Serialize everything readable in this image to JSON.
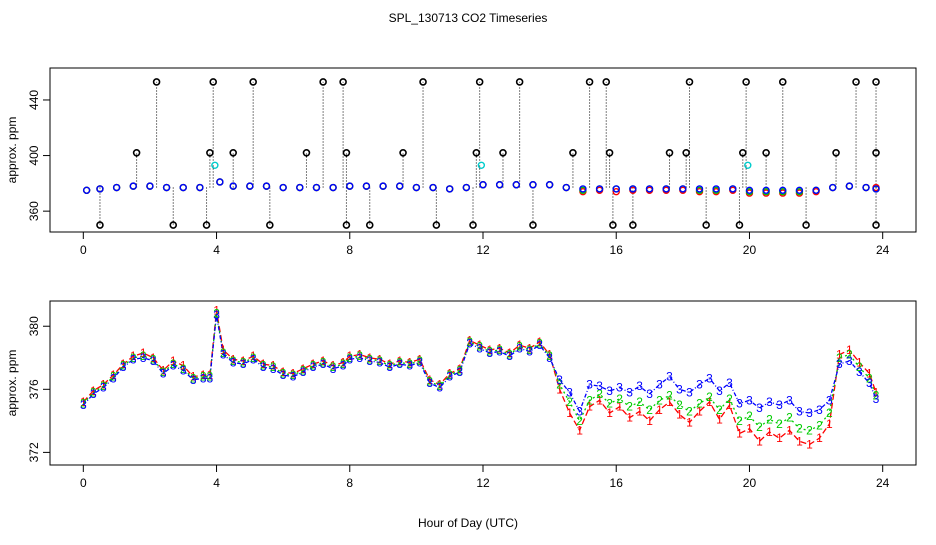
{
  "title": "SPL_130713  CO2 Timeseries",
  "xlabel": "Hour of Day (UTC)",
  "colors": {
    "series1": "#ff0000",
    "series2": "#00cc00",
    "series3": "#0000ff",
    "flag": "#000000",
    "cyan": "#00cccc"
  },
  "chart_data": [
    {
      "type": "scatter",
      "panel": "top",
      "ylabel": "approx. ppm",
      "x_ticks": [
        0,
        4,
        8,
        12,
        16,
        20,
        24
      ],
      "y_ticks": [
        360,
        400,
        440
      ],
      "xlim": [
        -1,
        25
      ],
      "ylim": [
        345,
        463
      ],
      "series": [
        {
          "name": "1",
          "x": [
            0.1,
            0.5,
            1,
            1.5,
            2,
            2.5,
            3,
            3.5,
            4.1,
            4.5,
            5,
            5.5,
            6,
            6.5,
            7,
            7.5,
            8,
            8.5,
            9,
            9.5,
            10,
            10.5,
            11,
            11.5,
            12,
            12.5,
            13,
            13.5,
            14,
            14.5,
            15,
            15.5,
            16,
            16.5,
            17,
            17.5,
            18,
            18.5,
            19,
            19.5,
            20,
            20.5,
            21,
            21.5,
            22,
            22.5,
            23,
            23.5,
            23.8
          ],
          "y": [
            375,
            376,
            377,
            378,
            378,
            377,
            377,
            377,
            381,
            378,
            378,
            378,
            377,
            377,
            377,
            377,
            378,
            378,
            378,
            378,
            377,
            377,
            376,
            377,
            379,
            379,
            379,
            379,
            379,
            377,
            374,
            375,
            374,
            375,
            375,
            375,
            375,
            374,
            374,
            375,
            373,
            373,
            373,
            373,
            374,
            377,
            378,
            377,
            377
          ]
        },
        {
          "name": "2",
          "x": [
            0.1,
            0.5,
            1,
            1.5,
            2,
            2.5,
            3,
            3.5,
            4.1,
            4.5,
            5,
            5.5,
            6,
            6.5,
            7,
            7.5,
            8,
            8.5,
            9,
            9.5,
            10,
            10.5,
            11,
            11.5,
            12,
            12.5,
            13,
            13.5,
            14,
            14.5,
            15,
            15.5,
            16,
            16.5,
            17,
            17.5,
            18,
            18.5,
            19,
            19.5,
            20,
            20.5,
            21,
            21.5,
            22,
            22.5,
            23,
            23.5,
            23.8
          ],
          "y": [
            375,
            376,
            377,
            378,
            378,
            377,
            377,
            377,
            381,
            378,
            378,
            378,
            377,
            377,
            377,
            377,
            378,
            378,
            378,
            378,
            377,
            377,
            376,
            377,
            379,
            379,
            379,
            379,
            379,
            377,
            375,
            376,
            376,
            376,
            376,
            376,
            376,
            375,
            375,
            376,
            374,
            374,
            374,
            374,
            375,
            377,
            378,
            377,
            376
          ]
        },
        {
          "name": "3",
          "x": [
            0.1,
            0.5,
            1,
            1.5,
            2,
            2.5,
            3,
            3.5,
            4.1,
            4.5,
            5,
            5.5,
            6,
            6.5,
            7,
            7.5,
            8,
            8.5,
            9,
            9.5,
            10,
            10.5,
            11,
            11.5,
            12,
            12.5,
            13,
            13.5,
            14,
            14.5,
            15,
            15.5,
            16,
            16.5,
            17,
            17.5,
            18,
            18.5,
            19,
            19.5,
            20,
            20.5,
            21,
            21.5,
            22,
            22.5,
            23,
            23.5,
            23.8
          ],
          "y": [
            375,
            376,
            377,
            378,
            378,
            377,
            377,
            377,
            381,
            378,
            378,
            378,
            377,
            377,
            377,
            377,
            378,
            378,
            378,
            378,
            377,
            377,
            376,
            377,
            379,
            379,
            379,
            379,
            379,
            377,
            376,
            376,
            376,
            376,
            376,
            376,
            376,
            376,
            376,
            376,
            375,
            375,
            375,
            375,
            375,
            377,
            378,
            377,
            376
          ]
        },
        {
          "name": "flag_high",
          "x": [
            2.2,
            3.9,
            5.1,
            7.2,
            7.8,
            10.2,
            11.9,
            13.1,
            15.2,
            15.7,
            18.2,
            19.9,
            21,
            23.2,
            23.8
          ],
          "y": [
            453,
            453,
            453,
            453,
            453,
            453,
            453,
            453,
            453,
            453,
            453,
            453,
            453,
            453,
            453
          ]
        },
        {
          "name": "flag_mid",
          "x": [
            1.6,
            3.8,
            4.5,
            6.7,
            7.9,
            9.6,
            11.8,
            12.6,
            14.7,
            15.8,
            17.6,
            18.1,
            19.8,
            20.5,
            22.6,
            23.8
          ],
          "y": [
            402,
            402,
            402,
            402,
            402,
            402,
            402,
            402,
            402,
            402,
            402,
            402,
            402,
            402,
            402,
            402
          ]
        },
        {
          "name": "flag_low",
          "x": [
            0.5,
            2.7,
            3.7,
            5.6,
            7.9,
            8.6,
            10.6,
            11.7,
            13.5,
            15.9,
            16.5,
            18.7,
            19.7,
            21.7,
            23.8
          ],
          "y": [
            350,
            350,
            350,
            350,
            350,
            350,
            350,
            350,
            350,
            350,
            350,
            350,
            350,
            350,
            350
          ]
        },
        {
          "name": "cyan",
          "x": [
            3.95,
            11.95,
            19.95
          ],
          "y": [
            393,
            393,
            393
          ]
        }
      ]
    },
    {
      "type": "line",
      "panel": "bottom",
      "ylabel": "approx. ppm",
      "x_ticks": [
        0,
        4,
        8,
        12,
        16,
        20,
        24
      ],
      "y_ticks": [
        372,
        376,
        380
      ],
      "xlim": [
        -1,
        25
      ],
      "ylim": [
        371.2,
        381.6
      ],
      "series": [
        {
          "name": "1",
          "x": [
            0,
            0.3,
            0.6,
            0.9,
            1.2,
            1.5,
            1.8,
            2.1,
            2.4,
            2.7,
            3,
            3.3,
            3.6,
            3.8,
            4,
            4.2,
            4.5,
            4.8,
            5.1,
            5.4,
            5.7,
            6,
            6.3,
            6.6,
            6.9,
            7.2,
            7.5,
            7.8,
            8,
            8.3,
            8.6,
            8.9,
            9.2,
            9.5,
            9.8,
            10.1,
            10.4,
            10.7,
            11,
            11.3,
            11.6,
            11.9,
            12.2,
            12.5,
            12.8,
            13.1,
            13.4,
            13.7,
            14,
            14.3,
            14.6,
            14.9,
            15.2,
            15.5,
            15.8,
            16.1,
            16.4,
            16.7,
            17,
            17.3,
            17.6,
            17.9,
            18.2,
            18.5,
            18.8,
            19.1,
            19.4,
            19.7,
            20,
            20.3,
            20.6,
            20.9,
            21.2,
            21.5,
            21.8,
            22.1,
            22.4,
            22.7,
            23,
            23.3,
            23.6,
            23.8
          ],
          "y": [
            375.2,
            375.9,
            376.3,
            376.9,
            377.6,
            378.1,
            378.3,
            378.0,
            377.2,
            377.8,
            377.5,
            376.8,
            376.9,
            376.9,
            381.0,
            378.5,
            377.9,
            377.8,
            378.1,
            377.6,
            377.5,
            377.1,
            377.0,
            377.3,
            377.6,
            377.8,
            377.5,
            377.7,
            378.1,
            378.2,
            378.0,
            377.9,
            377.6,
            377.8,
            377.7,
            377.9,
            376.6,
            376.3,
            377.0,
            377.3,
            379.1,
            378.8,
            378.5,
            378.6,
            378.3,
            378.8,
            378.6,
            379.0,
            378.2,
            376.0,
            374.5,
            373.4,
            374.9,
            375.3,
            374.5,
            374.9,
            374.2,
            374.6,
            374.0,
            374.7,
            375.2,
            374.4,
            373.9,
            374.6,
            375.2,
            374.1,
            375.0,
            373.2,
            373.5,
            372.7,
            373.3,
            372.9,
            373.4,
            372.7,
            372.5,
            372.9,
            373.8,
            378.2,
            378.5,
            377.7,
            377.0,
            375.8
          ]
        },
        {
          "name": "2",
          "x": [
            0,
            0.3,
            0.6,
            0.9,
            1.2,
            1.5,
            1.8,
            2.1,
            2.4,
            2.7,
            3,
            3.3,
            3.6,
            3.8,
            4,
            4.2,
            4.5,
            4.8,
            5.1,
            5.4,
            5.7,
            6,
            6.3,
            6.6,
            6.9,
            7.2,
            7.5,
            7.8,
            8,
            8.3,
            8.6,
            8.9,
            9.2,
            9.5,
            9.8,
            10.1,
            10.4,
            10.7,
            11,
            11.3,
            11.6,
            11.9,
            12.2,
            12.5,
            12.8,
            13.1,
            13.4,
            13.7,
            14,
            14.3,
            14.6,
            14.9,
            15.2,
            15.5,
            15.8,
            16.1,
            16.4,
            16.7,
            17,
            17.3,
            17.6,
            17.9,
            18.2,
            18.5,
            18.8,
            19.1,
            19.4,
            19.7,
            20,
            20.3,
            20.6,
            20.9,
            21.2,
            21.5,
            21.8,
            22.1,
            22.4,
            22.7,
            23,
            23.3,
            23.6,
            23.8
          ],
          "y": [
            375.1,
            375.8,
            376.2,
            376.8,
            377.5,
            378.0,
            378.1,
            377.9,
            377.1,
            377.6,
            377.3,
            376.7,
            376.8,
            376.8,
            380.8,
            378.3,
            377.8,
            377.7,
            378.0,
            377.5,
            377.4,
            377.0,
            376.9,
            377.2,
            377.5,
            377.7,
            377.4,
            377.6,
            378.0,
            378.1,
            377.9,
            377.8,
            377.5,
            377.7,
            377.6,
            377.8,
            376.5,
            376.2,
            376.9,
            377.2,
            379.0,
            378.7,
            378.4,
            378.5,
            378.2,
            378.7,
            378.5,
            378.9,
            378.1,
            376.3,
            375.2,
            374.0,
            375.3,
            375.7,
            375.1,
            375.4,
            374.9,
            375.2,
            374.7,
            375.3,
            375.6,
            375.0,
            374.6,
            375.1,
            375.5,
            374.7,
            375.4,
            374.0,
            374.3,
            373.6,
            374.1,
            373.8,
            374.2,
            373.5,
            373.4,
            373.7,
            374.5,
            378.0,
            378.2,
            377.4,
            376.7,
            375.6
          ]
        },
        {
          "name": "3",
          "x": [
            0,
            0.3,
            0.6,
            0.9,
            1.2,
            1.5,
            1.8,
            2.1,
            2.4,
            2.7,
            3,
            3.3,
            3.6,
            3.8,
            4,
            4.2,
            4.5,
            4.8,
            5.1,
            5.4,
            5.7,
            6,
            6.3,
            6.6,
            6.9,
            7.2,
            7.5,
            7.8,
            8,
            8.3,
            8.6,
            8.9,
            9.2,
            9.5,
            9.8,
            10.1,
            10.4,
            10.7,
            11,
            11.3,
            11.6,
            11.9,
            12.2,
            12.5,
            12.8,
            13.1,
            13.4,
            13.7,
            14,
            14.3,
            14.6,
            14.9,
            15.2,
            15.5,
            15.8,
            16.1,
            16.4,
            16.7,
            17,
            17.3,
            17.6,
            17.9,
            18.2,
            18.5,
            18.8,
            19.1,
            19.4,
            19.7,
            20,
            20.3,
            20.6,
            20.9,
            21.2,
            21.5,
            21.8,
            22.1,
            22.4,
            22.7,
            23,
            23.3,
            23.6,
            23.8
          ],
          "y": [
            375.0,
            375.7,
            376.1,
            376.7,
            377.4,
            377.9,
            378.0,
            377.8,
            377.0,
            377.5,
            377.2,
            376.6,
            376.7,
            376.7,
            380.7,
            378.2,
            377.7,
            377.6,
            377.9,
            377.4,
            377.3,
            376.9,
            376.8,
            377.1,
            377.4,
            377.6,
            377.3,
            377.5,
            377.9,
            378.0,
            377.8,
            377.7,
            377.4,
            377.6,
            377.5,
            377.7,
            376.4,
            376.1,
            376.8,
            377.1,
            378.9,
            378.6,
            378.3,
            378.4,
            378.1,
            378.6,
            378.4,
            378.8,
            378.0,
            376.6,
            375.8,
            374.6,
            376.3,
            376.2,
            375.9,
            376.1,
            375.8,
            376.2,
            375.7,
            376.3,
            376.8,
            376.0,
            375.8,
            376.3,
            376.7,
            375.9,
            376.4,
            375.1,
            375.3,
            374.8,
            375.2,
            375.0,
            375.3,
            374.6,
            374.5,
            374.7,
            375.3,
            377.6,
            377.8,
            377.1,
            376.4,
            375.4
          ]
        }
      ]
    }
  ]
}
